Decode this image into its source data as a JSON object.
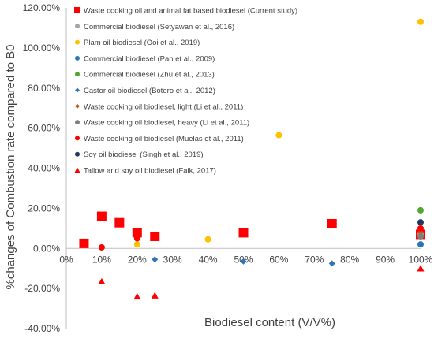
{
  "chart_data": {
    "type": "scatter",
    "xlabel": "Biodiesel content (V/V%)",
    "ylabel": "%changes of Combustion rate compared to B0",
    "xlim": [
      0,
      100
    ],
    "ylim": [
      -40,
      120
    ],
    "x_ticks": [
      "0%",
      "10%",
      "20%",
      "30%",
      "40%",
      "50%",
      "60%",
      "70%",
      "80%",
      "90%",
      "100%"
    ],
    "y_ticks": [
      "-40.00%",
      "-20.00%",
      "0.00%",
      "20.00%",
      "40.00%",
      "60.00%",
      "80.00%",
      "100.00%",
      "120.00%"
    ],
    "grid": false,
    "legend_position": "top-left",
    "series": [
      {
        "name": "Waste cooking oil and animal fat based biodiesel (Current study)",
        "marker": "square",
        "color": "#ff0000",
        "points": [
          [
            5,
            2.5
          ],
          [
            10,
            16
          ],
          [
            15,
            12.8
          ],
          [
            20,
            7.8
          ],
          [
            25,
            6
          ],
          [
            50,
            7.8
          ],
          [
            75,
            12.3
          ],
          [
            100,
            7
          ]
        ]
      },
      {
        "name": "Commercial biodiesel (Setyawan et al., 2016)",
        "marker": "circle",
        "color": "#a5a5a5",
        "points": [
          [
            100,
            7
          ]
        ]
      },
      {
        "name": "Plam oil biodiesel (Ooi et al., 2019)",
        "marker": "circle",
        "color": "#ffc000",
        "points": [
          [
            20,
            2
          ],
          [
            40,
            4.5
          ],
          [
            60,
            56.5
          ],
          [
            100,
            113
          ]
        ]
      },
      {
        "name": "Commercial biodiesel (Pan et al., 2009)",
        "marker": "circle",
        "color": "#2e75b6",
        "points": [
          [
            100,
            2
          ]
        ]
      },
      {
        "name": "Commercial biodiesel (Zhu et al., 2013)",
        "marker": "circle",
        "color": "#4ea72e",
        "points": [
          [
            100,
            19
          ]
        ]
      },
      {
        "name": "Castor oil biodiesel (Botero et al., 2012)",
        "marker": "diamond",
        "color": "#2f75b5",
        "points": [
          [
            25,
            -5.5
          ],
          [
            50,
            -6.5
          ],
          [
            75,
            -7.5
          ]
        ]
      },
      {
        "name": "Waste cooking oil biodiesel, light (Li et al., 2011)",
        "marker": "diamond",
        "color": "#c55a11",
        "points": [
          [
            100,
            8
          ]
        ]
      },
      {
        "name": "Waste cooking oil biodiesel, heavy (Li et al., 2011)",
        "marker": "circle",
        "color": "#7f7f7f",
        "points": [
          [
            100,
            6
          ]
        ]
      },
      {
        "name": "Waste cooking oil biodiesel (Muelas et al., 2011)",
        "marker": "circle",
        "color": "#ff0000",
        "points": [
          [
            10,
            0.5
          ],
          [
            20,
            5
          ],
          [
            100,
            10
          ]
        ]
      },
      {
        "name": "Soy oil biodiesel (Singh et al., 2019)",
        "marker": "circle",
        "color": "#1f3864",
        "points": [
          [
            100,
            13
          ]
        ]
      },
      {
        "name": "Tallow and soy oil biodiesel (Faik, 2017)",
        "marker": "triangle",
        "color": "#ff0000",
        "points": [
          [
            10,
            -16.5
          ],
          [
            20,
            -24
          ],
          [
            25,
            -23.5
          ],
          [
            100,
            -10
          ]
        ]
      }
    ]
  }
}
